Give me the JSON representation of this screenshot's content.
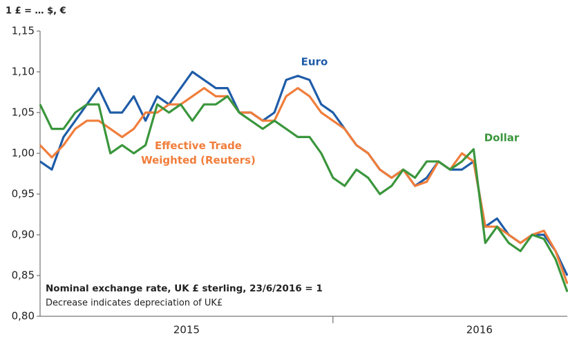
{
  "chart_data": {
    "type": "line",
    "y_axis_label": "1 £ = … $, €",
    "note_title": "Nominal exchange rate, UK £ sterling, 23/6/2016 = 1",
    "note_text": "Decrease indicates depreciation of UK£",
    "x": [
      2015,
      2015.04,
      2015.08,
      2015.12,
      2015.16,
      2015.2,
      2015.24,
      2015.28,
      2015.32,
      2015.36,
      2015.4,
      2015.44,
      2015.48,
      2015.52,
      2015.56,
      2015.6,
      2015.64,
      2015.68,
      2015.72,
      2015.76,
      2015.8,
      2015.84,
      2015.88,
      2015.92,
      2015.96,
      2016,
      2016.04,
      2016.08,
      2016.12,
      2016.16,
      2016.2,
      2016.24,
      2016.28,
      2016.32,
      2016.36,
      2016.4,
      2016.44,
      2016.48,
      2016.52,
      2016.56,
      2016.6,
      2016.64,
      2016.68,
      2016.72,
      2016.76,
      2016.8
    ],
    "xlim": [
      2015,
      2016.8
    ],
    "xticks": [
      {
        "value": 2015.5,
        "label": "2015"
      },
      {
        "value": 2016.5,
        "label": "2016"
      }
    ],
    "x_separators": [
      2016
    ],
    "ylim": [
      0.8,
      1.15
    ],
    "yticks": [
      {
        "value": 0.8,
        "label": "0,80"
      },
      {
        "value": 0.85,
        "label": "0,85"
      },
      {
        "value": 0.9,
        "label": "0,90"
      },
      {
        "value": 0.95,
        "label": "0,95"
      },
      {
        "value": 1.0,
        "label": "1,00"
      },
      {
        "value": 1.05,
        "label": "1,05"
      },
      {
        "value": 1.1,
        "label": "1,10"
      },
      {
        "value": 1.15,
        "label": "1,15"
      }
    ],
    "grid": false,
    "series": [
      {
        "name": "Euro",
        "color": "#1f5ca8",
        "values": [
          0.99,
          0.98,
          1.02,
          1.04,
          1.06,
          1.08,
          1.05,
          1.05,
          1.07,
          1.04,
          1.07,
          1.06,
          1.08,
          1.1,
          1.09,
          1.08,
          1.08,
          1.05,
          1.05,
          1.04,
          1.05,
          1.09,
          1.095,
          1.09,
          1.06,
          1.05,
          1.03,
          1.01,
          1.0,
          0.98,
          0.97,
          0.98,
          0.96,
          0.97,
          0.99,
          0.98,
          0.98,
          0.99,
          0.91,
          0.92,
          0.9,
          0.89,
          0.9,
          0.9,
          0.88,
          0.85
        ]
      },
      {
        "name": "Effective Trade Weighted (Reuters)",
        "color": "#f07d3a",
        "values": [
          1.01,
          0.995,
          1.01,
          1.03,
          1.04,
          1.04,
          1.03,
          1.02,
          1.03,
          1.05,
          1.05,
          1.06,
          1.06,
          1.07,
          1.08,
          1.07,
          1.07,
          1.05,
          1.05,
          1.04,
          1.04,
          1.07,
          1.08,
          1.07,
          1.05,
          1.04,
          1.03,
          1.01,
          1.0,
          0.98,
          0.97,
          0.98,
          0.96,
          0.965,
          0.99,
          0.98,
          1.0,
          0.99,
          0.91,
          0.91,
          0.9,
          0.89,
          0.9,
          0.905,
          0.88,
          0.84
        ]
      },
      {
        "name": "Dollar",
        "color": "#3a963c",
        "values": [
          1.06,
          1.03,
          1.03,
          1.05,
          1.06,
          1.06,
          1.0,
          1.01,
          1.0,
          1.01,
          1.06,
          1.05,
          1.06,
          1.04,
          1.06,
          1.06,
          1.07,
          1.05,
          1.04,
          1.03,
          1.04,
          1.03,
          1.02,
          1.02,
          1.0,
          0.97,
          0.96,
          0.98,
          0.97,
          0.95,
          0.96,
          0.98,
          0.97,
          0.99,
          0.99,
          0.98,
          0.99,
          1.005,
          0.89,
          0.91,
          0.89,
          0.88,
          0.9,
          0.895,
          0.87,
          0.83
        ]
      }
    ]
  }
}
